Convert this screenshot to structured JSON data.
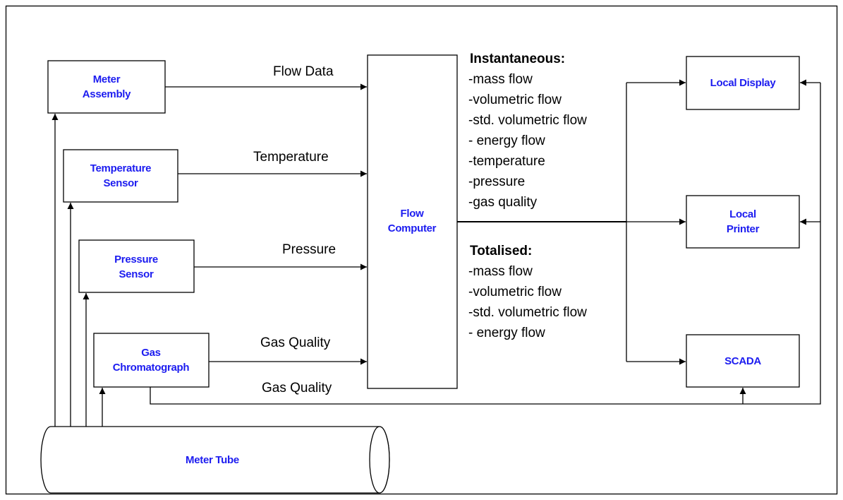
{
  "nodes": [
    {
      "label": [
        "Meter",
        "Assembly"
      ]
    },
    {
      "label": [
        "Temperature",
        "Sensor"
      ]
    },
    {
      "label": [
        "Pressure",
        "Sensor"
      ]
    },
    {
      "label": [
        "Gas",
        "Chromatograph"
      ]
    },
    {
      "label": [
        "Flow",
        "Computer"
      ]
    },
    {
      "label": [
        "Local Display"
      ]
    },
    {
      "label": [
        "Local",
        "Printer"
      ]
    },
    {
      "label": [
        "SCADA"
      ]
    },
    {
      "label": [
        "Meter Tube"
      ]
    }
  ],
  "edges": [
    {
      "label": "Flow Data"
    },
    {
      "label": "Temperature"
    },
    {
      "label": "Pressure"
    },
    {
      "label": "Gas Quality"
    },
    {
      "label": "Gas Quality"
    }
  ],
  "instantaneous": {
    "title": "Instantaneous:",
    "items": [
      "-mass flow",
      "-volumetric flow",
      "-std. volumetric flow",
      "- energy flow",
      "-temperature",
      "-pressure",
      "-gas quality"
    ]
  },
  "totalised": {
    "title": "Totalised:",
    "items": [
      "-mass flow",
      "-volumetric flow",
      "-std. volumetric flow",
      "- energy flow"
    ]
  }
}
